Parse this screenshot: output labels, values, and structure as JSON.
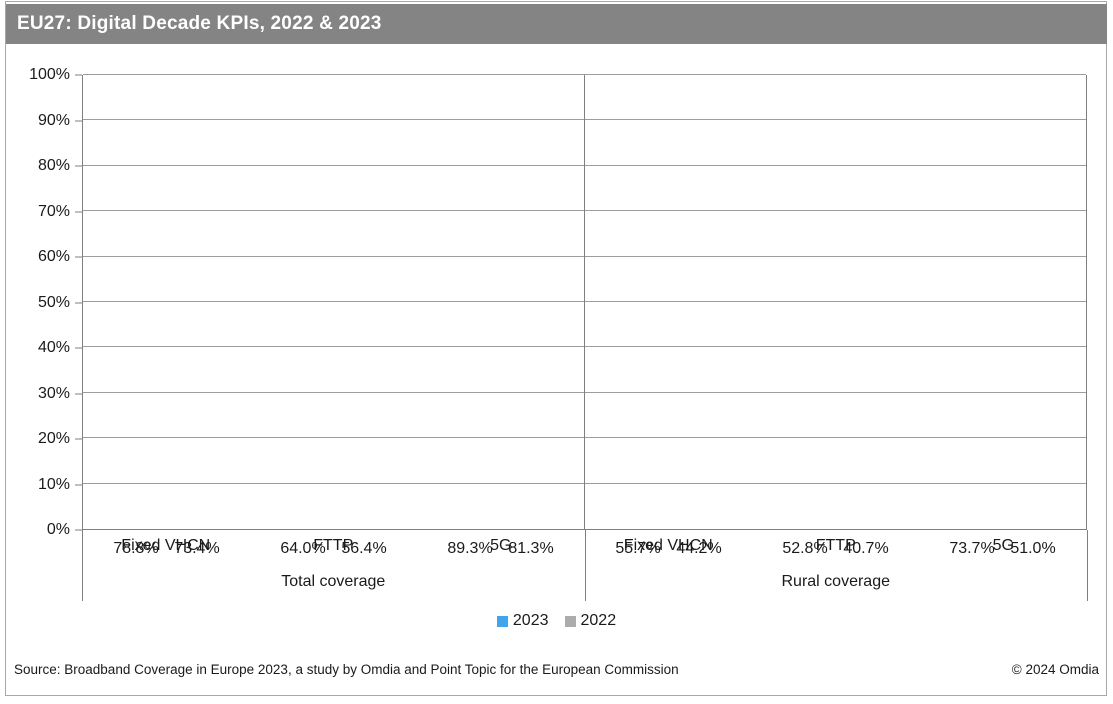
{
  "chart_data": {
    "type": "bar",
    "title": "EU27: Digital Decade KPIs, 2022 & 2023",
    "groups": [
      {
        "label": "Total coverage",
        "categories": [
          "Fixed VHCN",
          "FTTP",
          "5G"
        ]
      },
      {
        "label": "Rural coverage",
        "categories": [
          "Fixed VHCN",
          "FTTP",
          "5G"
        ]
      }
    ],
    "series": [
      {
        "name": "2023",
        "color": "#41a4ec",
        "values": [
          [
            78.8,
            64.0,
            89.3
          ],
          [
            55.7,
            52.8,
            73.7
          ]
        ]
      },
      {
        "name": "2022",
        "color": "#acacac",
        "values": [
          [
            73.4,
            56.4,
            81.3
          ],
          [
            44.2,
            40.7,
            51.0
          ]
        ]
      }
    ],
    "value_suffix": "%",
    "value_decimals": 1,
    "ylim": [
      0,
      100
    ],
    "ytick_values": [
      0,
      10,
      20,
      30,
      40,
      50,
      60,
      70,
      80,
      90,
      100
    ],
    "ytick_labels": [
      "0%",
      "10%",
      "20%",
      "30%",
      "40%",
      "50%",
      "60%",
      "70%",
      "80%",
      "90%",
      "100%"
    ],
    "grid": true,
    "data_labels": true,
    "legend_position": "bottom-center"
  },
  "footer": {
    "source": "Source: Broadband Coverage in Europe 2023, a study by Omdia and Point Topic for the European Commission",
    "copyright": "© 2024 Omdia"
  },
  "colors": {
    "accent_blue": "#41a4ec",
    "bar_gray": "#acacac",
    "header_gray": "#848484"
  }
}
